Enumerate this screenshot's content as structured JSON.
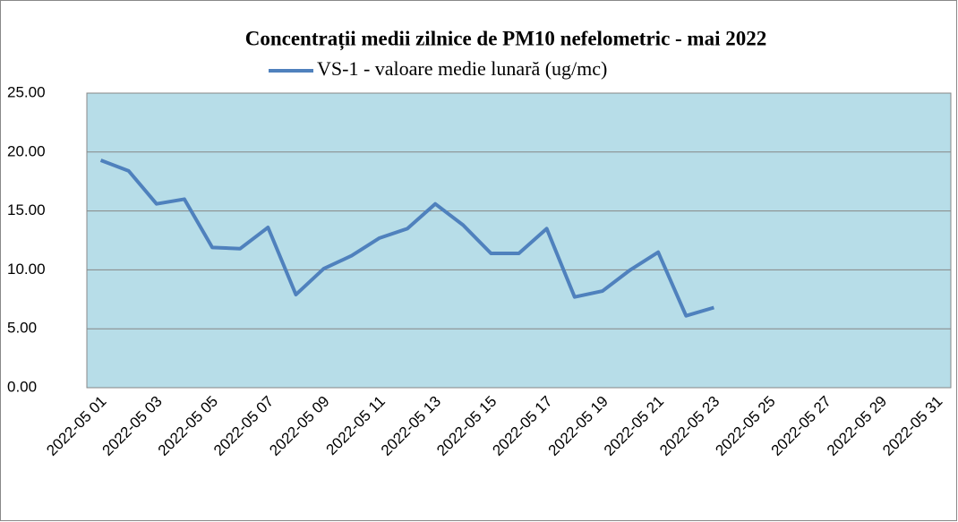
{
  "chart_data": {
    "type": "line",
    "title": "Concentrații  medii zilnice de PM10 nefelometric - mai 2022",
    "categories": [
      "2022-05 01",
      null,
      "2022-05 03",
      null,
      "2022-05 05",
      null,
      "2022-05 07",
      null,
      "2022-05 09",
      null,
      "2022-05 11",
      null,
      "2022-05 13",
      null,
      "2022-05 15",
      null,
      "2022-05 17",
      null,
      "2022-05 19",
      null,
      "2022-05 21",
      null,
      "2022-05 23",
      null,
      "2022-05 25",
      null,
      "2022-05 27",
      null,
      "2022-05 29",
      null,
      "2022-05 31"
    ],
    "series": [
      {
        "name": "VS-1 - valoare medie lunară (ug/mc)",
        "color": "#4f81bd",
        "values": [
          19.3,
          18.4,
          15.6,
          16.0,
          11.9,
          11.8,
          13.6,
          7.9,
          10.1,
          11.2,
          12.7,
          13.5,
          15.6,
          13.8,
          11.4,
          11.4,
          13.5,
          7.7,
          8.2,
          10.0,
          11.5,
          6.1,
          6.8,
          null,
          null,
          null,
          null,
          null,
          null,
          null,
          null
        ]
      }
    ],
    "ylim": [
      0,
      25
    ],
    "yticks": [
      {
        "value": 0,
        "label": "0.00"
      },
      {
        "value": 5,
        "label": "5.00"
      },
      {
        "value": 10,
        "label": "10.00"
      },
      {
        "value": 15,
        "label": "15.00"
      },
      {
        "value": 20,
        "label": "20.00"
      },
      {
        "value": 25,
        "label": "25.00"
      }
    ],
    "grid": true,
    "legend": "top",
    "plot_background": "#b7dde8"
  }
}
